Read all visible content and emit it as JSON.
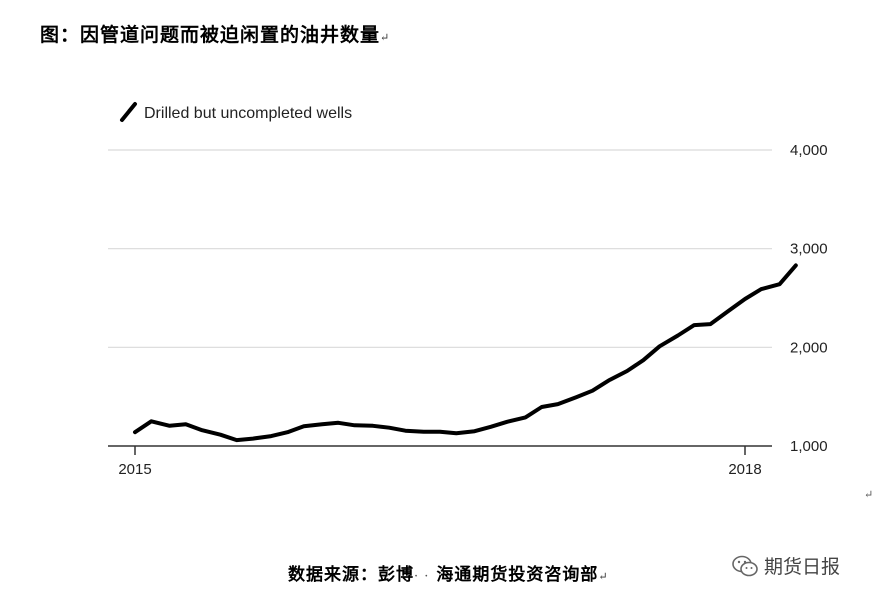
{
  "title": "图：因管道问题而被迫闲置的油井数量",
  "return_mark": "↵",
  "source": "数据来源：彭博",
  "source_dots": "· ·",
  "source_org": "海通期货投资咨询部",
  "watermark": {
    "text": "期货日报",
    "icon": "wechat-icon"
  },
  "colors": {
    "line": "#000000",
    "grid": "#d9d9d9",
    "axis": "#333333"
  },
  "chart_data": {
    "type": "line",
    "title": "",
    "xlabel": "",
    "ylabel": "",
    "legend": "Drilled but uncompleted wells",
    "legend_position": "top-left",
    "x_ticks": [
      "2015",
      "2018"
    ],
    "y_ticks": [
      "1,000",
      "2,000",
      "3,000",
      "4,000"
    ],
    "y_tick_values": [
      1000,
      2000,
      3000,
      4000
    ],
    "ylim": [
      1000,
      4000
    ],
    "xlim": [
      2015,
      2018.25
    ],
    "grid": "horizontal",
    "y_axis_position": "right",
    "series": [
      {
        "x": [
          2015.0,
          2015.08,
          2015.17,
          2015.25,
          2015.33,
          2015.42,
          2015.5,
          2015.58,
          2015.67,
          2015.75,
          2015.83,
          2015.92,
          2016.0,
          2016.08,
          2016.17,
          2016.25,
          2016.33,
          2016.42,
          2016.5,
          2016.58,
          2016.67,
          2016.75,
          2016.83,
          2016.92,
          2017.0,
          2017.08,
          2017.17,
          2017.25,
          2017.33,
          2017.42,
          2017.5,
          2017.58,
          2017.67,
          2017.75,
          2017.83,
          2017.92,
          2018.0,
          2018.08,
          2018.17,
          2018.25
        ],
        "y": [
          1140,
          1250,
          1205,
          1220,
          1160,
          1115,
          1060,
          1075,
          1100,
          1140,
          1200,
          1220,
          1235,
          1210,
          1205,
          1185,
          1155,
          1145,
          1145,
          1130,
          1150,
          1195,
          1245,
          1290,
          1395,
          1425,
          1495,
          1560,
          1665,
          1760,
          1870,
          2010,
          2120,
          2225,
          2235,
          2370,
          2490,
          2590,
          2640,
          2830
        ]
      }
    ]
  }
}
